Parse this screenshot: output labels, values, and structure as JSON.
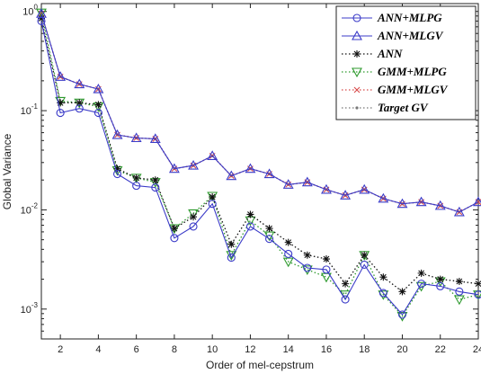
{
  "chart_data": {
    "type": "line",
    "xlabel": "Order of mel-cepstrum",
    "ylabel": "Global Variance",
    "xlim": [
      1,
      24
    ],
    "ylim": [
      0.0005,
      1.2
    ],
    "yscale": "log",
    "grid": false,
    "legend_position": "top-right",
    "x": [
      1,
      2,
      3,
      4,
      5,
      6,
      7,
      8,
      9,
      10,
      11,
      12,
      13,
      14,
      15,
      16,
      17,
      18,
      19,
      20,
      21,
      22,
      23,
      24
    ],
    "xticks": [
      2,
      4,
      6,
      8,
      10,
      12,
      14,
      16,
      18,
      20,
      22,
      24
    ],
    "yticks": [
      {
        "value": 0.001,
        "base": "10",
        "exp": "-3"
      },
      {
        "value": 0.01,
        "base": "10",
        "exp": "-2"
      },
      {
        "value": 0.1,
        "base": "10",
        "exp": "-1"
      },
      {
        "value": 1,
        "base": "10",
        "exp": "0"
      }
    ],
    "series": [
      {
        "name": "ANN+MLPG",
        "color": "#3b3bc8",
        "line": "solid",
        "marker": "circle",
        "values": [
          0.8,
          0.095,
          0.105,
          0.095,
          0.023,
          0.0175,
          0.0168,
          0.0052,
          0.0068,
          0.0115,
          0.0033,
          0.0068,
          0.0051,
          0.0036,
          0.0026,
          0.0025,
          0.00125,
          0.0028,
          0.00145,
          0.00088,
          0.0018,
          0.0017,
          0.0015,
          0.0014
        ]
      },
      {
        "name": "ANN+MLGV",
        "color": "#3b3bc8",
        "line": "solid",
        "marker": "triangle",
        "values": [
          0.95,
          0.22,
          0.185,
          0.165,
          0.057,
          0.053,
          0.052,
          0.026,
          0.028,
          0.035,
          0.022,
          0.026,
          0.023,
          0.018,
          0.019,
          0.016,
          0.014,
          0.016,
          0.013,
          0.0115,
          0.012,
          0.011,
          0.0095,
          0.012
        ]
      },
      {
        "name": "ANN",
        "color": "#111111",
        "line": "dotted",
        "marker": "star",
        "values": [
          0.85,
          0.12,
          0.12,
          0.115,
          0.026,
          0.021,
          0.02,
          0.0065,
          0.0085,
          0.0135,
          0.0045,
          0.009,
          0.0065,
          0.0047,
          0.0035,
          0.0032,
          0.0018,
          0.0035,
          0.0021,
          0.0015,
          0.0023,
          0.002,
          0.0019,
          0.0018
        ]
      },
      {
        "name": "GMM+MLPG",
        "color": "#2e9a2e",
        "line": "dotted",
        "marker": "triangle-down",
        "values": [
          0.97,
          0.125,
          0.12,
          0.11,
          0.025,
          0.021,
          0.019,
          0.0065,
          0.0092,
          0.0138,
          0.0035,
          0.0078,
          0.0055,
          0.003,
          0.0025,
          0.0021,
          0.0014,
          0.0035,
          0.0014,
          0.00085,
          0.0017,
          0.0019,
          0.00125,
          0.0014
        ]
      },
      {
        "name": "GMM+MLGV",
        "color": "#d84a4a",
        "line": "dotted",
        "marker": "x",
        "values": [
          0.95,
          0.22,
          0.185,
          0.165,
          0.057,
          0.053,
          0.052,
          0.026,
          0.028,
          0.035,
          0.022,
          0.026,
          0.023,
          0.018,
          0.019,
          0.016,
          0.014,
          0.016,
          0.013,
          0.0115,
          0.012,
          0.011,
          0.0095,
          0.012
        ]
      },
      {
        "name": "Target GV",
        "color": "#777777",
        "line": "dotted",
        "marker": "dot",
        "values": [
          0.95,
          0.22,
          0.185,
          0.165,
          0.057,
          0.053,
          0.052,
          0.026,
          0.028,
          0.035,
          0.022,
          0.026,
          0.023,
          0.018,
          0.019,
          0.016,
          0.014,
          0.016,
          0.013,
          0.0115,
          0.012,
          0.011,
          0.0095,
          0.012
        ]
      }
    ]
  }
}
